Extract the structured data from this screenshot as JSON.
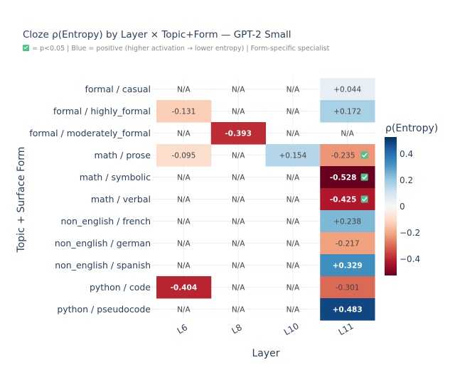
{
  "header": {
    "title": "Cloze ρ(Entropy) by Layer × Topic+Form — GPT-2 Small",
    "subtitle_text": " = p<0.05  |  Blue = positive (higher activation → lower entropy)  |  Form-specific specialist",
    "subtitle_icon": "green-checkbox-icon"
  },
  "chart_data": {
    "type": "heatmap",
    "title": "Cloze ρ(Entropy) by Layer × Topic+Form — GPT-2 Small",
    "xlabel": "Layer",
    "ylabel": "Topic + Surface Form",
    "x": [
      "L6",
      "L8",
      "L10",
      "L11"
    ],
    "y": [
      "formal / casual",
      "formal / highly_formal",
      "formal / moderately_formal",
      "math / prose",
      "math / symbolic",
      "math / verbal",
      "non_english / french",
      "non_english / german",
      "non_english / spanish",
      "python / code",
      "python / pseudocode"
    ],
    "z": [
      [
        null,
        null,
        null,
        0.044
      ],
      [
        -0.131,
        null,
        null,
        0.172
      ],
      [
        null,
        -0.393,
        null,
        null
      ],
      [
        -0.095,
        null,
        0.154,
        -0.235
      ],
      [
        null,
        null,
        null,
        -0.528
      ],
      [
        null,
        null,
        null,
        -0.425
      ],
      [
        null,
        null,
        null,
        0.238
      ],
      [
        null,
        null,
        null,
        -0.217
      ],
      [
        null,
        null,
        null,
        0.329
      ],
      [
        -0.404,
        null,
        null,
        -0.301
      ],
      [
        null,
        null,
        null,
        0.483
      ]
    ],
    "significant": [
      [
        false,
        false,
        false,
        false
      ],
      [
        false,
        false,
        false,
        false
      ],
      [
        false,
        false,
        false,
        false
      ],
      [
        false,
        false,
        false,
        true
      ],
      [
        false,
        false,
        false,
        true
      ],
      [
        false,
        false,
        false,
        true
      ],
      [
        false,
        false,
        false,
        false
      ],
      [
        false,
        false,
        false,
        false
      ],
      [
        false,
        false,
        false,
        false
      ],
      [
        false,
        false,
        false,
        false
      ],
      [
        false,
        false,
        false,
        false
      ]
    ],
    "na_label": "N/A",
    "colorscale": "RdBu",
    "zrange": [
      -0.528,
      0.528
    ],
    "colorbar": {
      "title": "ρ(Entropy)",
      "tickvals": [
        0.4,
        0.2,
        0,
        -0.2,
        -0.4
      ],
      "ticktext": [
        "0.4",
        "0.2",
        "0",
        "−0.2",
        "−0.4"
      ]
    },
    "grid": true
  }
}
